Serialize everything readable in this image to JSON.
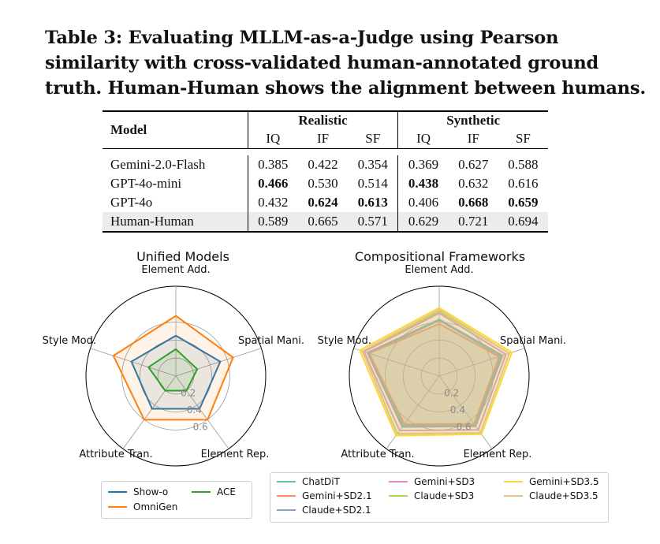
{
  "caption": "Table 3: Evaluating MLLM-as-a-Judge using Pearson similarity with cross-validated human-annotated ground truth. Human-Human shows the alignment between humans.",
  "table": {
    "model_header": "Model",
    "groups": [
      "Realistic",
      "Synthetic"
    ],
    "subheaders": [
      "IQ",
      "IF",
      "SF",
      "IQ",
      "IF",
      "SF"
    ],
    "rows": [
      {
        "model": "Gemini-2.0-Flash",
        "values": [
          "0.385",
          "0.422",
          "0.354",
          "0.369",
          "0.627",
          "0.588"
        ],
        "bold": [
          false,
          false,
          false,
          false,
          false,
          false
        ]
      },
      {
        "model": "GPT-4o-mini",
        "values": [
          "0.466",
          "0.530",
          "0.514",
          "0.438",
          "0.632",
          "0.616"
        ],
        "bold": [
          true,
          false,
          false,
          true,
          false,
          false
        ]
      },
      {
        "model": "GPT-4o",
        "values": [
          "0.432",
          "0.624",
          "0.613",
          "0.406",
          "0.668",
          "0.659"
        ],
        "bold": [
          false,
          true,
          true,
          false,
          true,
          true
        ]
      },
      {
        "model": "Human-Human",
        "values": [
          "0.589",
          "0.665",
          "0.571",
          "0.629",
          "0.721",
          "0.694"
        ],
        "bold": [
          false,
          false,
          false,
          false,
          false,
          false
        ]
      }
    ]
  },
  "chart_data": [
    {
      "type": "radar",
      "title": "Unified Models",
      "axes": [
        "Element Add.",
        "Spatial Mani.",
        "Element Rep.",
        "Attribute Tran.",
        "Style Mod."
      ],
      "rlim": [
        0,
        1
      ],
      "rticks": [
        "0.2",
        "0.4",
        "0.6"
      ],
      "series": [
        {
          "name": "Show-o",
          "color": "#1f77b4",
          "values": [
            0.45,
            0.52,
            0.45,
            0.45,
            0.52
          ]
        },
        {
          "name": "OmniGen",
          "color": "#ff7f0e",
          "values": [
            0.67,
            0.67,
            0.6,
            0.6,
            0.73
          ]
        },
        {
          "name": "ACE",
          "color": "#2ca02c",
          "values": [
            0.3,
            0.25,
            0.2,
            0.2,
            0.32
          ]
        }
      ],
      "legend": {
        "position": "bottom",
        "items": [
          "Show-o",
          "ACE",
          "OmniGen"
        ]
      }
    },
    {
      "type": "radar",
      "title": "Compositional Frameworks",
      "axes": [
        "Element Add.",
        "Spatial Mani.",
        "Element Rep.",
        "Attribute Tran.",
        "Style Mod."
      ],
      "rlim": [
        0,
        1
      ],
      "rticks": [
        "0.2",
        "0.4",
        "0.6"
      ],
      "series": [
        {
          "name": "ChatDiT",
          "color": "#66c2a5",
          "values": [
            0.62,
            0.72,
            0.68,
            0.68,
            0.82
          ]
        },
        {
          "name": "Gemini+SD2.1",
          "color": "#fc8d62",
          "values": [
            0.58,
            0.7,
            0.66,
            0.66,
            0.82
          ]
        },
        {
          "name": "Claude+SD2.1",
          "color": "#8da0cb",
          "values": [
            0.63,
            0.74,
            0.69,
            0.7,
            0.84
          ]
        },
        {
          "name": "Gemini+SD3",
          "color": "#e78ac3",
          "values": [
            0.7,
            0.78,
            0.74,
            0.75,
            0.88
          ]
        },
        {
          "name": "Claude+SD3",
          "color": "#a6d854",
          "values": [
            0.72,
            0.82,
            0.78,
            0.79,
            0.9
          ]
        },
        {
          "name": "Gemini+SD3.5",
          "color": "#ffd92f",
          "values": [
            0.76,
            0.85,
            0.8,
            0.82,
            0.93
          ]
        },
        {
          "name": "Claude+SD3.5",
          "color": "#e5c494",
          "values": [
            0.74,
            0.82,
            0.78,
            0.8,
            0.9
          ]
        }
      ],
      "legend": {
        "position": "bottom",
        "items": [
          "ChatDiT",
          "Gemini+SD3",
          "Gemini+SD3.5",
          "Gemini+SD2.1",
          "Claude+SD3",
          "Claude+SD3.5",
          "Claude+SD2.1"
        ]
      }
    }
  ]
}
